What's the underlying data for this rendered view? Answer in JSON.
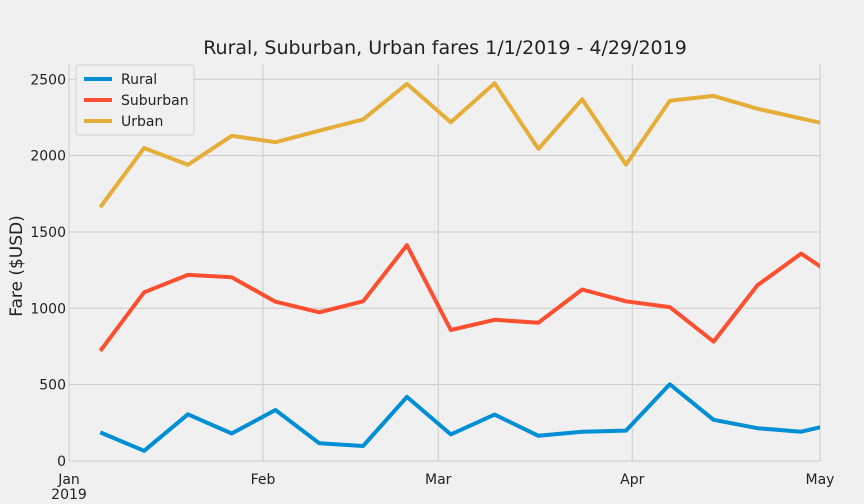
{
  "chart_data": {
    "type": "line",
    "title": "Rural, Suburban, Urban fares 1/1/2019 - 4/29/2019",
    "xlabel": "",
    "ylabel": "Fare ($USD)",
    "ylim": [
      0,
      2600
    ],
    "yticks": [
      "0",
      "500",
      "1000",
      "1500",
      "2000",
      "2500"
    ],
    "xticks": [
      {
        "label": "Jan",
        "sub": "2019",
        "date": "2019-01-01"
      },
      {
        "label": "Feb",
        "sub": "",
        "date": "2019-02-01"
      },
      {
        "label": "Mar",
        "sub": "",
        "date": "2019-03-01"
      },
      {
        "label": "Apr",
        "sub": "",
        "date": "2019-04-01"
      },
      {
        "label": "May",
        "sub": "",
        "date": "2019-05-01"
      }
    ],
    "x": [
      "2019-01-06",
      "2019-01-13",
      "2019-01-20",
      "2019-01-27",
      "2019-02-03",
      "2019-02-10",
      "2019-02-17",
      "2019-02-24",
      "2019-03-03",
      "2019-03-10",
      "2019-03-17",
      "2019-03-24",
      "2019-03-31",
      "2019-04-07",
      "2019-04-14",
      "2019-04-21",
      "2019-04-28",
      "2019-05-05"
    ],
    "series": [
      {
        "name": "Rural",
        "color": "#008fd5",
        "values": [
          187,
          67,
          306,
          180,
          334,
          116,
          98,
          420,
          174,
          304,
          165,
          191,
          199,
          502,
          270,
          215,
          192,
          258
        ]
      },
      {
        "name": "Suburban",
        "color": "#fc4f30",
        "values": [
          721,
          1105,
          1219,
          1203,
          1043,
          974,
          1046,
          1413,
          858,
          925,
          906,
          1123,
          1046,
          1008,
          782,
          1151,
          1358,
          1165
        ]
      },
      {
        "name": "Urban",
        "color": "#e5ae38",
        "values": [
          1662,
          2050,
          1940,
          2130,
          2088,
          2163,
          2237,
          2470,
          2219,
          2474,
          2044,
          2369,
          1941,
          2359,
          2391,
          2307,
          2243,
          2180
        ]
      }
    ],
    "grid": true,
    "legend": "top-left"
  }
}
